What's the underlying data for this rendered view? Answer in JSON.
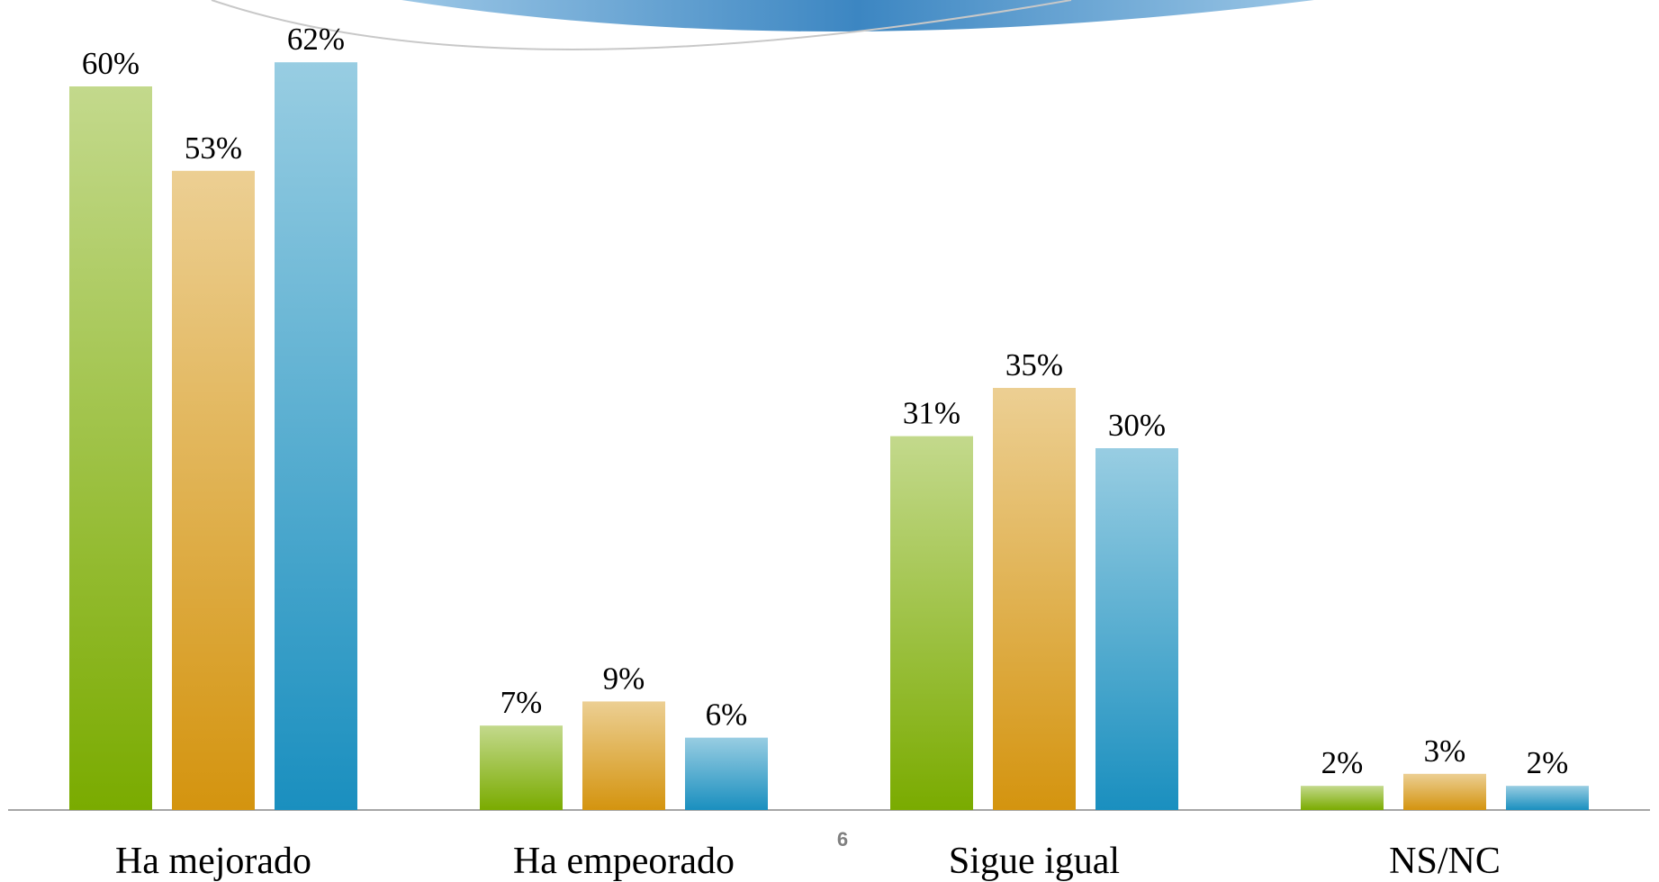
{
  "chart_data": {
    "type": "bar",
    "categories": [
      "Ha mejorado",
      "Ha empeorado",
      "Sigue igual",
      "NS/NC"
    ],
    "series": [
      {
        "color": "#7aab00",
        "values": [
          60,
          7,
          31,
          2
        ],
        "value_labels": [
          "60%",
          "7%",
          "31%",
          "2%"
        ]
      },
      {
        "color": "#d4940f",
        "values": [
          53,
          9,
          35,
          3
        ],
        "value_labels": [
          "53%",
          "9%",
          "35%",
          "3%"
        ]
      },
      {
        "color": "#1a8fbf",
        "values": [
          62,
          6,
          30,
          2
        ],
        "value_labels": [
          "62%",
          "6%",
          "30%",
          "2%"
        ]
      }
    ]
  },
  "page_number": "6"
}
